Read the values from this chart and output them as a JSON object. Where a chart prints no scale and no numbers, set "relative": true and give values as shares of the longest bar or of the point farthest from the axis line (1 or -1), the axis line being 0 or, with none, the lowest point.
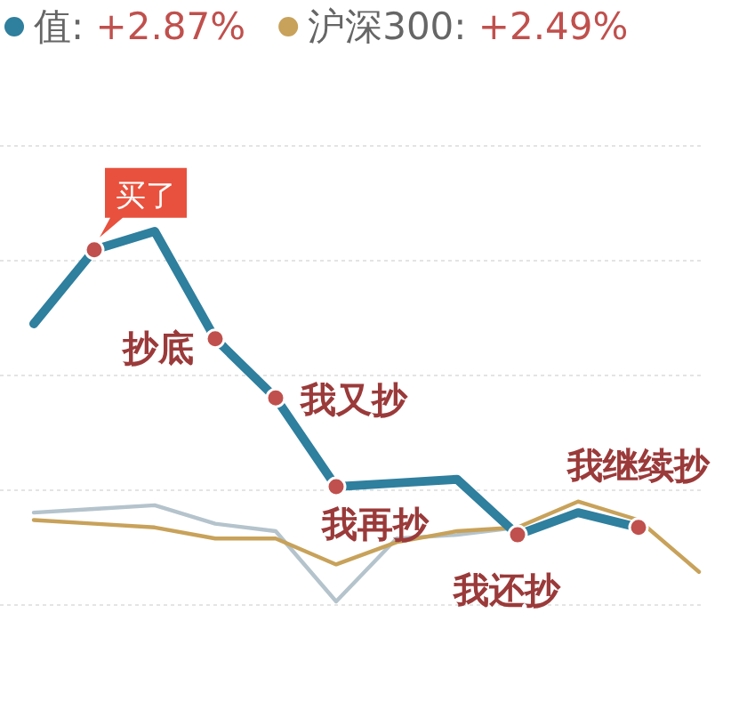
{
  "chart_data": {
    "type": "line",
    "relative": true,
    "categories": [
      null,
      null,
      null,
      null,
      null,
      null,
      null,
      null,
      null,
      null,
      null,
      null
    ],
    "series": [
      {
        "name": "值: +2.87%",
        "color": "#2f7f9e",
        "values": [
          0.75,
          0.95,
          1,
          0.71,
          0.55,
          0.31,
          0.32,
          0.33,
          0.18,
          0.24,
          0.2,
          null
        ]
      },
      {
        "color": "#b4c3cc",
        "values": [
          0.24,
          0.25,
          0.26,
          0.21,
          0.19,
          0,
          0.17,
          0.18,
          0.2,
          null,
          null,
          null
        ]
      },
      {
        "name": "沪深300: +2.49%",
        "color": "#c8a25a",
        "values": [
          0.22,
          0.21,
          0.2,
          0.17,
          0.17,
          0.1,
          0.16,
          0.19,
          0.2,
          0.27,
          0.22,
          0.08
        ]
      }
    ],
    "annotations": [
      "买了",
      "抄底",
      "我又抄",
      "我再抄",
      "我还抄",
      "我继续抄"
    ],
    "grid": "y",
    "legend": "top",
    "line_style": "solid"
  }
}
